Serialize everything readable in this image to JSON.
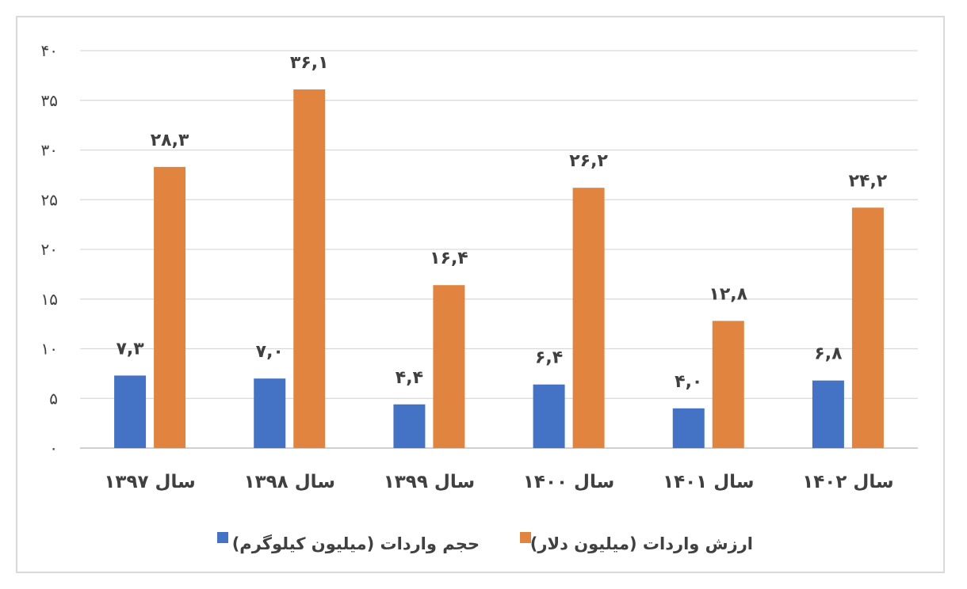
{
  "chart_data": {
    "type": "bar",
    "title": "",
    "xlabel": "",
    "ylabel": "",
    "ylim": [
      0,
      40
    ],
    "yticks": [
      0,
      5,
      10,
      15,
      20,
      25,
      30,
      35,
      40
    ],
    "ytick_labels": [
      "۰",
      "۵",
      "۱۰",
      "۱۵",
      "۲۰",
      "۲۵",
      "۳۰",
      "۳۵",
      "۴۰"
    ],
    "grid": true,
    "legend_position": "bottom",
    "categories": [
      "سال ۱۳۹۷",
      "سال ۱۳۹۸",
      "سال ۱۳۹۹",
      "سال ۱۴۰۰",
      "سال ۱۴۰۱",
      "سال ۱۴۰۲"
    ],
    "series": [
      {
        "name": "حجم واردات (میلیون کیلوگرم)",
        "color": "#4472c4",
        "values": [
          7.3,
          7.0,
          4.4,
          6.4,
          4.0,
          6.8
        ],
        "labels": [
          "۷,۳",
          "۷,۰",
          "۴,۴",
          "۶,۴",
          "۴,۰",
          "۶,۸"
        ]
      },
      {
        "name": "ارزش واردات (میلیون دلار)",
        "color": "#e0843f",
        "values": [
          28.3,
          36.1,
          16.4,
          26.2,
          12.8,
          24.2
        ],
        "labels": [
          "۲۸,۳",
          "۳۶,۱",
          "۱۶,۴",
          "۲۶,۲",
          "۱۲,۸",
          "۲۴,۲"
        ]
      }
    ]
  }
}
